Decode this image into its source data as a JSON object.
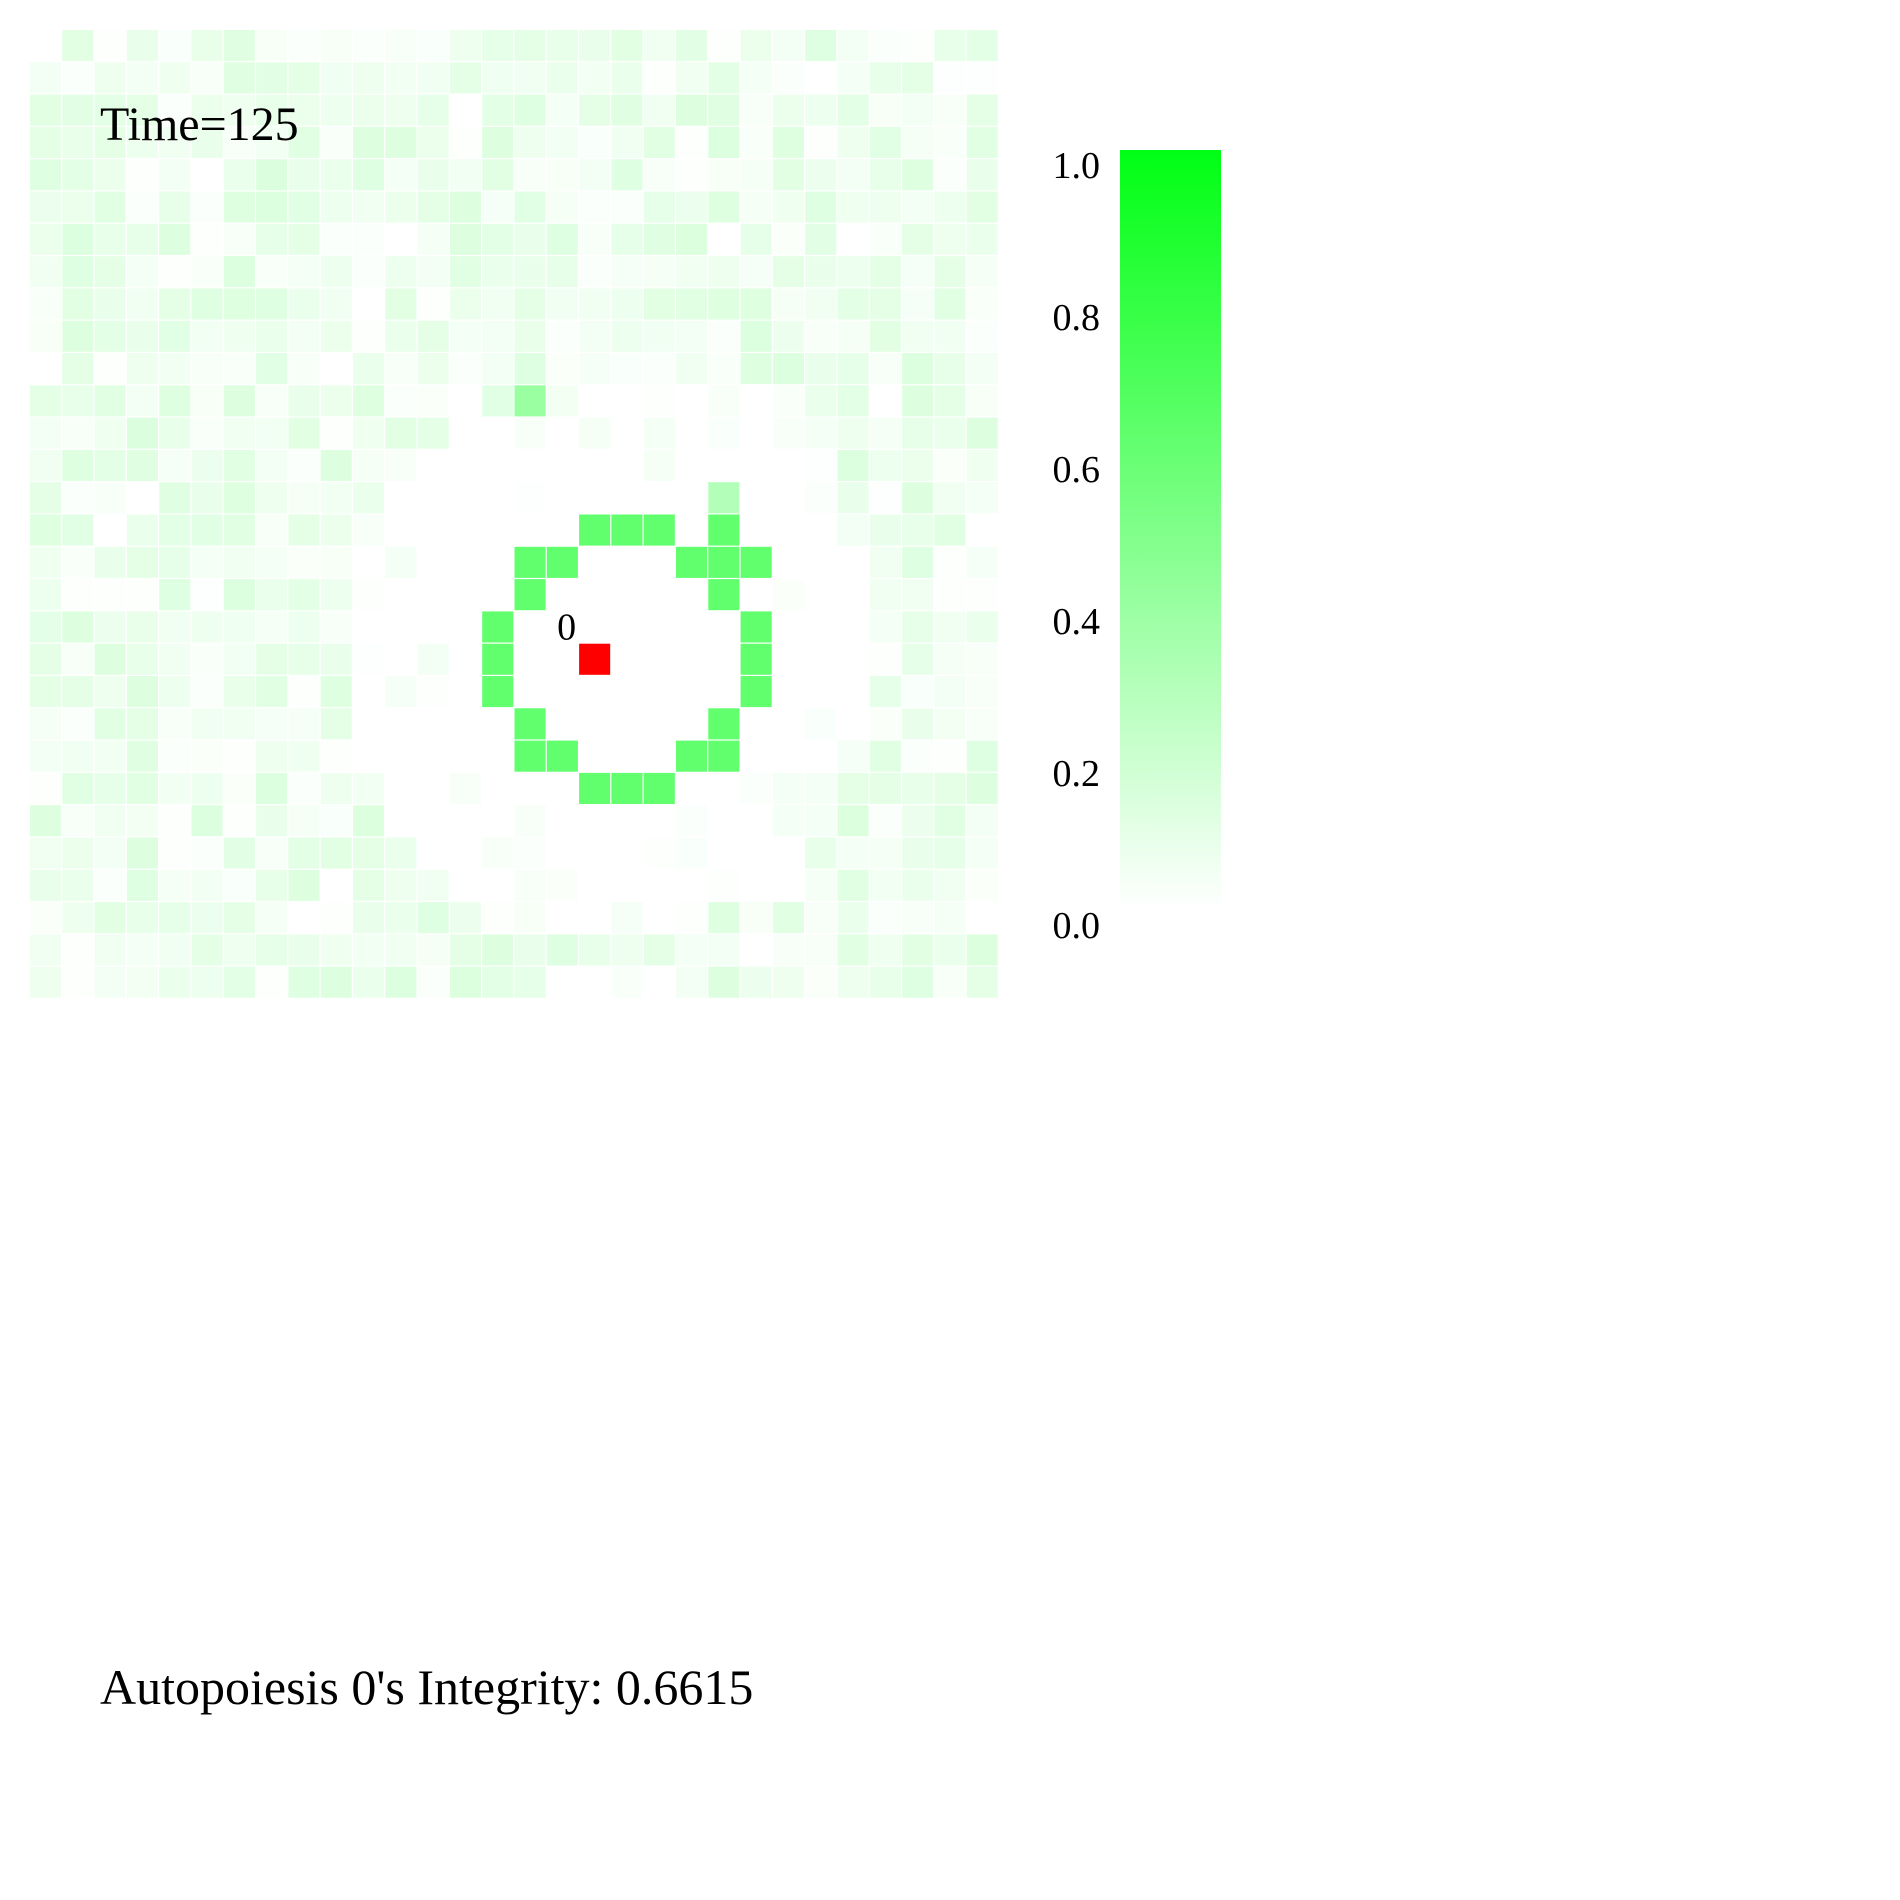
{
  "chart_data": {
    "type": "heatmap",
    "time_label": "Time=125",
    "footer_text": "Autopoiesis 0's Integrity: 0.6615",
    "grid_size": [
      30,
      30
    ],
    "value_range": [
      0,
      1
    ],
    "colormap": {
      "low": "#ffffff",
      "high": "#00ff14"
    },
    "colorbar": {
      "ticks": [
        0.0,
        0.2,
        0.4,
        0.6,
        0.8,
        1.0
      ],
      "tick_labels": [
        "0.0",
        "0.2",
        "0.4",
        "0.6",
        "0.8",
        "1.0"
      ]
    },
    "membrane_value": 0.62,
    "membrane_cells": [
      [
        15,
        17
      ],
      [
        15,
        18
      ],
      [
        15,
        19
      ],
      [
        15,
        21
      ],
      [
        16,
        15
      ],
      [
        16,
        16
      ],
      [
        16,
        20
      ],
      [
        16,
        21
      ],
      [
        16,
        22
      ],
      [
        17,
        15
      ],
      [
        17,
        21
      ],
      [
        18,
        14
      ],
      [
        18,
        22
      ],
      [
        19,
        14
      ],
      [
        19,
        22
      ],
      [
        20,
        14
      ],
      [
        20,
        22
      ],
      [
        21,
        15
      ],
      [
        21,
        21
      ],
      [
        22,
        15
      ],
      [
        22,
        16
      ],
      [
        22,
        20
      ],
      [
        22,
        21
      ],
      [
        23,
        17
      ],
      [
        23,
        18
      ],
      [
        23,
        19
      ]
    ],
    "highlight_cells": [
      {
        "row": 11,
        "col": 15,
        "value": 0.4
      },
      {
        "row": 14,
        "col": 21,
        "value": 0.3
      }
    ],
    "agents": [
      {
        "label": "0",
        "row": 19,
        "col": 17,
        "color": "#ff0000"
      }
    ],
    "integrity": 0.6615
  }
}
